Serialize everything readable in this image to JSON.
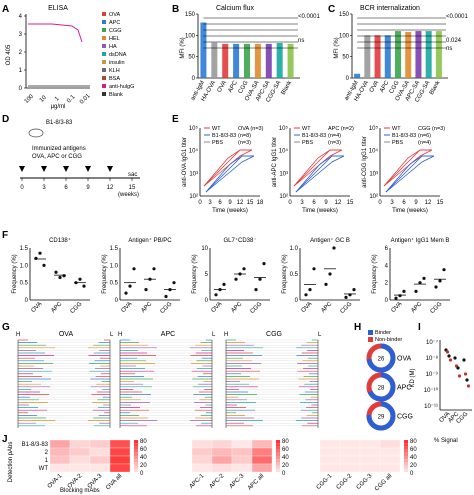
{
  "panels": {
    "A": {
      "letter": "A",
      "title": "ELISA",
      "ylabel": "OD 405",
      "xlabel": "μg/ml",
      "xticks": [
        "100",
        "10",
        "1",
        "0.1",
        "0.01"
      ],
      "yticks": [
        "0",
        "1",
        "2",
        "3",
        "4"
      ],
      "legend": [
        "OVA",
        "APC",
        "CGG",
        "HEL",
        "HA",
        "dsDNA",
        "insulin",
        "KLH",
        "BSA",
        "anti-hulgG",
        "Blank"
      ],
      "legend_colors": [
        "#e23b3b",
        "#2b7bd6",
        "#3aa64a",
        "#e08a2a",
        "#9b59b6",
        "#1aa7a1",
        "#c49a3a",
        "#6b6b6b",
        "#a0522d",
        "#d02090",
        "#333333"
      ]
    },
    "B": {
      "letter": "B",
      "title": "Calcium flux",
      "ylabel": "MFI (%)",
      "yticks": [
        "0",
        "50",
        "100",
        "150"
      ],
      "categories": [
        "anti-IgM",
        "HA-OVA",
        "OVA",
        "APC",
        "CGG",
        "OVA-SA",
        "APC-SA",
        "CGG-SA",
        "Blank"
      ],
      "values": [
        130,
        83,
        80,
        80,
        80,
        80,
        80,
        82,
        80
      ],
      "colors": [
        "#2b7bd6",
        "#999999",
        "#e23b3b",
        "#2b7bd6",
        "#3aa64a",
        "#e08a2a",
        "#7a3fb0",
        "#1aa7a1",
        "#8bc34a"
      ],
      "sig_top": "<0.0001",
      "sig_ns": "ns"
    },
    "C": {
      "letter": "C",
      "title": "BCR internalization",
      "ylabel": "MFI (%)",
      "yticks": [
        "0",
        "50",
        "100",
        "150"
      ],
      "categories": [
        "anti-IgM",
        "HA-OVA",
        "OVA",
        "APC",
        "CGG",
        "OVA-SA",
        "APC-SA",
        "CGG-SA",
        "Blank"
      ],
      "values": [
        10,
        100,
        100,
        100,
        110,
        108,
        110,
        110,
        110
      ],
      "colors": [
        "#2b7bd6",
        "#999999",
        "#e23b3b",
        "#2b7bd6",
        "#3aa64a",
        "#e08a2a",
        "#7a3fb0",
        "#1aa7a1",
        "#8bc34a"
      ],
      "sig_top": "<0.0001",
      "sig_mid": "0.024",
      "sig_ns": "ns"
    },
    "D": {
      "letter": "D",
      "mouse_label": "B1-8/3-83",
      "immunized_label": "Immunized antigens",
      "antigens_label": "OVA, APC or CGG",
      "timeline_ticks": [
        "0",
        "3",
        "6",
        "9",
        "12",
        "15"
      ],
      "sac_label": "sac",
      "weeks_label": "(weeks)"
    },
    "E": {
      "letter": "E",
      "xlabel": "Time (weeks)",
      "subplots": [
        {
          "ylabel": "anti-OVA IgG1 titer",
          "legend": [
            "WT",
            "B1-8/3-83",
            "PBS"
          ],
          "legend_n": [
            "OVA (n=3)",
            "(n=8)",
            "(n=3)"
          ],
          "xticks": [
            "0",
            "3",
            "6",
            "9",
            "12",
            "15",
            "18"
          ]
        },
        {
          "ylabel": "anti-APC IgG1 titer",
          "legend": [
            "WT",
            "B1-8/3-83",
            "PBS"
          ],
          "legend_n": [
            "APC (n=2)",
            "(n=4)",
            "(n=3)"
          ],
          "xticks": [
            "0",
            "3",
            "6",
            "9",
            "12",
            "15"
          ]
        },
        {
          "ylabel": "anti-CGG IgG1 titer",
          "legend": [
            "WT",
            "B1-8/3-83",
            "PBS"
          ],
          "legend_n": [
            "CGG (n=3)",
            "(n=6)",
            "(n=4)"
          ],
          "xticks": [
            "0",
            "3",
            "6",
            "9",
            "12",
            "15"
          ]
        }
      ],
      "yticks": [
        "10²",
        "10³",
        "10⁴",
        "10⁵"
      ],
      "colors": {
        "WT": "#e23b3b",
        "B1": "#2b5fd6",
        "PBS": "#888888"
      }
    },
    "F": {
      "letter": "F",
      "ylabel": "Frequency (%)",
      "xcats": [
        "OVA",
        "APC",
        "CGG"
      ],
      "subplots": [
        {
          "title": "CD138⁺",
          "yticks": [
            "0",
            "0.5",
            "1.0",
            "1.5"
          ],
          "points": [
            [
              1.2,
              1.35,
              1.0
            ],
            [
              0.8,
              0.65,
              0.7
            ],
            [
              0.5,
              0.6,
              0.4
            ]
          ]
        },
        {
          "title": "Antigen⁺ PB/PC",
          "yticks": [
            "0",
            "0.5",
            "1.0",
            "1.5"
          ],
          "points": [
            [
              0.2,
              0.4,
              0.9
            ],
            [
              0.3,
              0.6,
              0.9
            ],
            [
              0.1,
              0.3,
              0.5
            ]
          ]
        },
        {
          "title": "GL7⁺CD38⁻",
          "yticks": [
            "0",
            "5",
            "10"
          ],
          "points": [
            [
              1,
              2,
              3
            ],
            [
              4,
              5,
              6
            ],
            [
              2,
              4,
              7
            ]
          ]
        },
        {
          "title": "Antigen⁺ GC  B",
          "yticks": [
            "0",
            "0.5",
            "1.0"
          ],
          "points": [
            [
              0.1,
              0.2,
              0.6
            ],
            [
              0.3,
              0.5,
              1.0
            ],
            [
              0.05,
              0.1,
              0.2
            ]
          ]
        },
        {
          "title": "Antigen⁺ IgG1 Mem B",
          "yticks": [
            "0",
            "2",
            "4",
            "6"
          ],
          "points": [
            [
              0.2,
              0.5,
              1.0
            ],
            [
              1,
              2,
              2.5
            ],
            [
              1.5,
              2.2,
              3.5
            ]
          ]
        }
      ]
    },
    "G": {
      "letter": "G",
      "trees": [
        {
          "name": "OVA",
          "h": "H",
          "l": "L"
        },
        {
          "name": "APC",
          "h": "H",
          "l": "L"
        },
        {
          "name": "CGG",
          "h": "H",
          "l": "L"
        }
      ]
    },
    "H": {
      "letter": "H",
      "legend": [
        "Binder",
        "Non-binder"
      ],
      "legend_colors": [
        "#2b5fd6",
        "#e23b3b"
      ],
      "donuts": [
        {
          "label": "OVA",
          "count": "26",
          "binder_frac": 0.73
        },
        {
          "label": "APC",
          "count": "28",
          "binder_frac": 0.68
        },
        {
          "label": "CGG",
          "count": "29",
          "binder_frac": 0.76
        }
      ]
    },
    "I": {
      "letter": "I",
      "ylabel": "KD (M)",
      "yticks": [
        "10⁻⁷",
        "10⁻⁸",
        "10⁻⁹",
        "10⁻¹⁰",
        "10⁻¹¹"
      ],
      "xcats": [
        "OVA",
        "APC",
        "CGG"
      ]
    },
    "J": {
      "letter": "J",
      "ylabel": "Detection pAbs",
      "xlabel": "Blocking mAbs",
      "rows": [
        "B1-8/3-83",
        "2",
        "1",
        "WT"
      ],
      "heatmaps": [
        {
          "cols": [
            "OVA-1",
            "OVA-2",
            "OVA-3",
            "OVA all"
          ],
          "values": [
            [
              40,
              15,
              20,
              85
            ],
            [
              30,
              20,
              10,
              90
            ],
            [
              25,
              10,
              20,
              95
            ],
            [
              5,
              5,
              5,
              90
            ]
          ]
        },
        {
          "cols": [
            "APC-1",
            "APC-2",
            "APC-3",
            "APC all"
          ],
          "values": [
            [
              10,
              15,
              5,
              30
            ],
            [
              20,
              30,
              25,
              60
            ],
            [
              15,
              40,
              20,
              70
            ],
            [
              5,
              10,
              5,
              40
            ]
          ]
        },
        {
          "cols": [
            "CGG-1",
            "CGG-2",
            "CGG-3",
            "CGG all"
          ],
          "values": [
            [
              5,
              5,
              5,
              10
            ],
            [
              5,
              5,
              5,
              5
            ],
            [
              5,
              5,
              5,
              5
            ],
            [
              5,
              5,
              5,
              5
            ]
          ]
        }
      ],
      "scale_ticks": [
        "80",
        "60",
        "40",
        "20",
        "0"
      ],
      "scale_label": "% Signal"
    }
  }
}
